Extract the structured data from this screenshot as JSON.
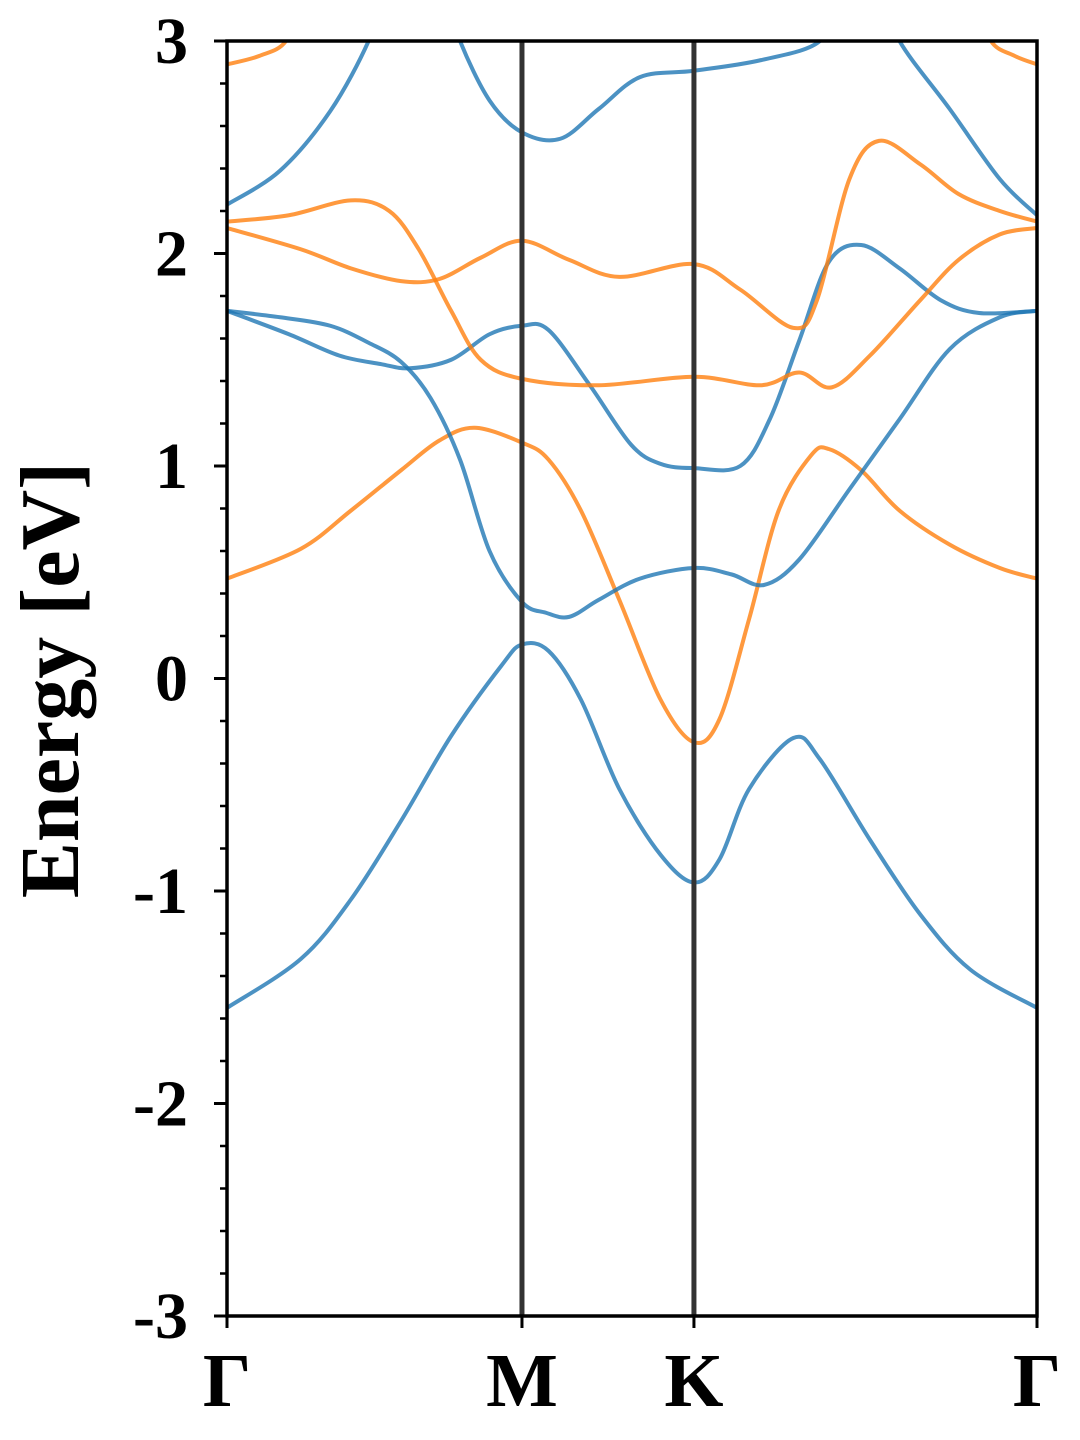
{
  "chart_data": {
    "type": "line",
    "title": "",
    "xlabel": "",
    "ylabel": "Energy [eV]",
    "ylim": [
      -3,
      3
    ],
    "xlim": [
      0,
      2.746
    ],
    "yticks": [
      {
        "value": 3,
        "label": "3"
      },
      {
        "value": 2,
        "label": "2"
      },
      {
        "value": 1,
        "label": "1"
      },
      {
        "value": 0,
        "label": "0"
      },
      {
        "value": -1,
        "label": "-1"
      },
      {
        "value": -2,
        "label": "-2"
      },
      {
        "value": -3,
        "label": "-3"
      }
    ],
    "minor_ytick_step": 0.2,
    "high_symmetry_points": [
      {
        "label": "Γ",
        "k": 0
      },
      {
        "label": "M",
        "k": 1.0
      },
      {
        "label": "K",
        "k": 1.583
      },
      {
        "label": "Γ",
        "k": 2.746
      }
    ],
    "vertical_lines_at": [
      1.0,
      1.583
    ],
    "colors": {
      "blue": "#1f77b4",
      "orange": "#ff7f0e",
      "vline": "#333333"
    },
    "series": [
      {
        "name": "blue-band-1",
        "color": "blue",
        "points": [
          [
            0,
            -1.55
          ],
          [
            0.25,
            -1.32
          ],
          [
            0.42,
            -1.04
          ],
          [
            0.59,
            -0.67
          ],
          [
            0.76,
            -0.27
          ],
          [
            0.93,
            0.06
          ],
          [
            1.0,
            0.16
          ],
          [
            1.09,
            0.13
          ],
          [
            1.2,
            -0.1
          ],
          [
            1.33,
            -0.52
          ],
          [
            1.47,
            -0.83
          ],
          [
            1.583,
            -0.96
          ],
          [
            1.67,
            -0.85
          ],
          [
            1.77,
            -0.52
          ],
          [
            1.92,
            -0.28
          ],
          [
            2.01,
            -0.38
          ],
          [
            2.18,
            -0.76
          ],
          [
            2.35,
            -1.11
          ],
          [
            2.52,
            -1.37
          ],
          [
            2.746,
            -1.55
          ]
        ]
      },
      {
        "name": "orange-band-1",
        "color": "orange",
        "points": [
          [
            0,
            0.47
          ],
          [
            0.25,
            0.61
          ],
          [
            0.42,
            0.79
          ],
          [
            0.59,
            0.98
          ],
          [
            0.72,
            1.12
          ],
          [
            0.84,
            1.18
          ],
          [
            1.0,
            1.11
          ],
          [
            1.09,
            1.03
          ],
          [
            1.2,
            0.79
          ],
          [
            1.33,
            0.37
          ],
          [
            1.47,
            -0.1
          ],
          [
            1.583,
            -0.3
          ],
          [
            1.67,
            -0.19
          ],
          [
            1.77,
            0.28
          ],
          [
            1.87,
            0.79
          ],
          [
            1.98,
            1.05
          ],
          [
            2.04,
            1.08
          ],
          [
            2.15,
            0.98
          ],
          [
            2.28,
            0.79
          ],
          [
            2.45,
            0.63
          ],
          [
            2.62,
            0.52
          ],
          [
            2.746,
            0.47
          ]
        ]
      },
      {
        "name": "blue-band-2",
        "color": "blue",
        "points": [
          [
            0,
            1.73
          ],
          [
            0.18,
            1.7
          ],
          [
            0.35,
            1.66
          ],
          [
            0.48,
            1.58
          ],
          [
            0.59,
            1.49
          ],
          [
            0.69,
            1.32
          ],
          [
            0.79,
            1.03
          ],
          [
            0.89,
            0.6
          ],
          [
            1.0,
            0.36
          ],
          [
            1.08,
            0.31
          ],
          [
            1.16,
            0.29
          ],
          [
            1.26,
            0.37
          ],
          [
            1.4,
            0.47
          ],
          [
            1.583,
            0.52
          ],
          [
            1.71,
            0.49
          ],
          [
            1.82,
            0.44
          ],
          [
            1.94,
            0.56
          ],
          [
            2.11,
            0.89
          ],
          [
            2.28,
            1.22
          ],
          [
            2.45,
            1.55
          ],
          [
            2.62,
            1.7
          ],
          [
            2.746,
            1.73
          ]
        ]
      },
      {
        "name": "blue-band-3",
        "color": "blue",
        "points": [
          [
            0,
            1.73
          ],
          [
            0.21,
            1.62
          ],
          [
            0.38,
            1.52
          ],
          [
            0.52,
            1.48
          ],
          [
            0.62,
            1.46
          ],
          [
            0.76,
            1.5
          ],
          [
            0.89,
            1.62
          ],
          [
            1.0,
            1.66
          ],
          [
            1.09,
            1.64
          ],
          [
            1.23,
            1.38
          ],
          [
            1.37,
            1.1
          ],
          [
            1.47,
            1.01
          ],
          [
            1.583,
            0.99
          ],
          [
            1.74,
            1.0
          ],
          [
            1.84,
            1.22
          ],
          [
            1.94,
            1.59
          ],
          [
            2.04,
            1.96
          ],
          [
            2.15,
            2.04
          ],
          [
            2.28,
            1.93
          ],
          [
            2.42,
            1.78
          ],
          [
            2.55,
            1.72
          ],
          [
            2.746,
            1.73
          ]
        ]
      },
      {
        "name": "orange-band-2",
        "color": "orange",
        "points": [
          [
            0,
            2.15
          ],
          [
            0.21,
            2.18
          ],
          [
            0.42,
            2.25
          ],
          [
            0.55,
            2.2
          ],
          [
            0.65,
            2.02
          ],
          [
            0.76,
            1.73
          ],
          [
            0.86,
            1.5
          ],
          [
            1.0,
            1.41
          ],
          [
            1.26,
            1.38
          ],
          [
            1.583,
            1.42
          ],
          [
            1.81,
            1.38
          ],
          [
            1.94,
            1.44
          ],
          [
            2.05,
            1.37
          ],
          [
            2.18,
            1.52
          ],
          [
            2.35,
            1.78
          ],
          [
            2.48,
            1.97
          ],
          [
            2.62,
            2.09
          ],
          [
            2.746,
            2.12
          ]
        ]
      },
      {
        "name": "orange-band-3",
        "color": "orange",
        "points": [
          [
            0,
            2.12
          ],
          [
            0.25,
            2.02
          ],
          [
            0.42,
            1.93
          ],
          [
            0.59,
            1.87
          ],
          [
            0.72,
            1.88
          ],
          [
            0.86,
            1.98
          ],
          [
            1.0,
            2.06
          ],
          [
            1.16,
            1.97
          ],
          [
            1.33,
            1.89
          ],
          [
            1.583,
            1.95
          ],
          [
            1.74,
            1.83
          ],
          [
            1.92,
            1.65
          ],
          [
            2.0,
            1.78
          ],
          [
            2.11,
            2.35
          ],
          [
            2.21,
            2.53
          ],
          [
            2.35,
            2.42
          ],
          [
            2.48,
            2.28
          ],
          [
            2.62,
            2.2
          ],
          [
            2.746,
            2.15
          ]
        ]
      },
      {
        "name": "blue-band-4",
        "color": "blue",
        "points": [
          [
            0,
            2.23
          ],
          [
            0.18,
            2.39
          ],
          [
            0.35,
            2.67
          ],
          [
            0.48,
            3.0
          ],
          [
            0.52,
            3.2
          ]
        ]
      },
      {
        "name": "blue-band-5",
        "color": "blue",
        "points": [
          [
            0.75,
            3.2
          ],
          [
            0.79,
            3.0
          ],
          [
            0.89,
            2.72
          ],
          [
            1.0,
            2.57
          ],
          [
            1.13,
            2.54
          ],
          [
            1.26,
            2.68
          ],
          [
            1.4,
            2.83
          ],
          [
            1.583,
            2.86
          ],
          [
            1.81,
            2.91
          ],
          [
            2.01,
            3.0
          ],
          [
            2.05,
            3.2
          ]
        ]
      },
      {
        "name": "blue-band-6",
        "color": "blue",
        "points": [
          [
            2.24,
            3.2
          ],
          [
            2.28,
            3.0
          ],
          [
            2.45,
            2.68
          ],
          [
            2.62,
            2.35
          ],
          [
            2.746,
            2.18
          ]
        ]
      },
      {
        "name": "orange-band-4-left",
        "color": "orange",
        "points": [
          [
            0,
            2.89
          ],
          [
            0.11,
            2.93
          ],
          [
            0.2,
            3.0
          ],
          [
            0.25,
            3.2
          ]
        ]
      },
      {
        "name": "orange-band-4-right",
        "color": "orange",
        "points": [
          [
            2.55,
            3.2
          ],
          [
            2.59,
            3.0
          ],
          [
            2.67,
            2.93
          ],
          [
            2.746,
            2.89
          ]
        ]
      }
    ]
  }
}
